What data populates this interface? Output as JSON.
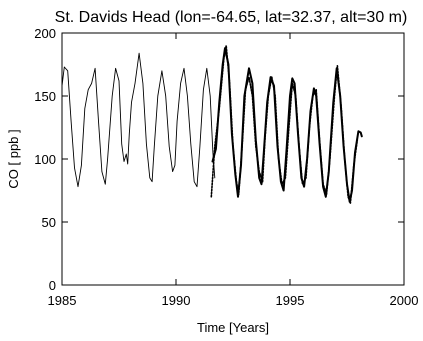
{
  "chart_data": {
    "type": "line",
    "title": "St. Davids Head (lon=-64.65, lat=32.37, alt=30 m)",
    "xlabel": "Time [Years]",
    "ylabel": "CO [ ppb ]",
    "xlim": [
      1985,
      2000
    ],
    "ylim": [
      0,
      200
    ],
    "grid": false,
    "x_ticks": [
      {
        "value": 1985,
        "label": "1985"
      },
      {
        "value": 1990,
        "label": "1990"
      },
      {
        "value": 1995,
        "label": "1995"
      },
      {
        "value": 2000,
        "label": "2000"
      }
    ],
    "y_ticks": [
      {
        "value": 0,
        "label": "0"
      },
      {
        "value": 50,
        "label": "50"
      },
      {
        "value": 100,
        "label": "100"
      },
      {
        "value": 150,
        "label": "150"
      },
      {
        "value": 200,
        "label": "200"
      }
    ],
    "series": [
      {
        "style": "solid-thin",
        "color": "#000000",
        "points": [
          [
            1985.0,
            158
          ],
          [
            1985.1,
            173
          ],
          [
            1985.25,
            170
          ],
          [
            1985.4,
            130
          ],
          [
            1985.55,
            93
          ],
          [
            1985.7,
            78
          ],
          [
            1985.85,
            95
          ],
          [
            1986.0,
            140
          ],
          [
            1986.15,
            155
          ],
          [
            1986.3,
            160
          ],
          [
            1986.45,
            172
          ],
          [
            1986.6,
            130
          ],
          [
            1986.75,
            90
          ],
          [
            1986.9,
            80
          ],
          [
            1987.0,
            100
          ],
          [
            1987.2,
            150
          ],
          [
            1987.35,
            172
          ],
          [
            1987.5,
            162
          ],
          [
            1987.62,
            112
          ],
          [
            1987.72,
            98
          ],
          [
            1987.82,
            104
          ],
          [
            1987.88,
            96
          ],
          [
            1987.95,
            120
          ],
          [
            1988.05,
            145
          ],
          [
            1988.2,
            160
          ],
          [
            1988.38,
            184
          ],
          [
            1988.55,
            160
          ],
          [
            1988.7,
            112
          ],
          [
            1988.85,
            85
          ],
          [
            1988.95,
            82
          ],
          [
            1989.05,
            110
          ],
          [
            1989.2,
            150
          ],
          [
            1989.38,
            170
          ],
          [
            1989.55,
            150
          ],
          [
            1989.7,
            110
          ],
          [
            1989.85,
            90
          ],
          [
            1989.95,
            95
          ],
          [
            1990.05,
            130
          ],
          [
            1990.2,
            160
          ],
          [
            1990.35,
            172
          ],
          [
            1990.5,
            150
          ],
          [
            1990.65,
            112
          ],
          [
            1990.8,
            82
          ],
          [
            1990.92,
            78
          ],
          [
            1991.05,
            110
          ],
          [
            1991.2,
            155
          ],
          [
            1991.35,
            172
          ],
          [
            1991.5,
            150
          ],
          [
            1991.62,
            105
          ],
          [
            1991.7,
            85
          ]
        ]
      },
      {
        "style": "solid-thick",
        "color": "#000000",
        "points": [
          [
            1991.6,
            98
          ],
          [
            1991.75,
            108
          ],
          [
            1991.9,
            145
          ],
          [
            1992.05,
            175
          ],
          [
            1992.15,
            188
          ],
          [
            1992.3,
            175
          ],
          [
            1992.45,
            120
          ],
          [
            1992.6,
            88
          ],
          [
            1992.72,
            70
          ],
          [
            1992.85,
            95
          ],
          [
            1993.0,
            150
          ],
          [
            1993.2,
            172
          ],
          [
            1993.35,
            160
          ],
          [
            1993.5,
            115
          ],
          [
            1993.65,
            85
          ],
          [
            1993.75,
            80
          ],
          [
            1993.85,
            105
          ],
          [
            1994.0,
            145
          ],
          [
            1994.15,
            165
          ],
          [
            1994.3,
            158
          ],
          [
            1994.45,
            110
          ],
          [
            1994.6,
            82
          ],
          [
            1994.72,
            75
          ],
          [
            1994.85,
            108
          ],
          [
            1995.0,
            150
          ],
          [
            1995.1,
            164
          ],
          [
            1995.2,
            160
          ],
          [
            1995.35,
            120
          ],
          [
            1995.5,
            85
          ],
          [
            1995.62,
            78
          ],
          [
            1995.75,
            100
          ],
          [
            1995.9,
            138
          ],
          [
            1996.05,
            156
          ],
          [
            1996.15,
            150
          ],
          [
            1996.3,
            112
          ],
          [
            1996.45,
            78
          ],
          [
            1996.57,
            70
          ],
          [
            1996.7,
            90
          ],
          [
            1996.9,
            145
          ],
          [
            1997.05,
            172
          ],
          [
            1997.2,
            150
          ],
          [
            1997.35,
            110
          ],
          [
            1997.5,
            80
          ],
          [
            1997.62,
            66
          ],
          [
            1997.72,
            75
          ],
          [
            1997.85,
            105
          ],
          [
            1998.0,
            122
          ],
          [
            1998.1,
            121
          ],
          [
            1998.15,
            118
          ]
        ]
      },
      {
        "style": "dotted",
        "color": "#000000",
        "points": [
          [
            1991.55,
            70
          ],
          [
            1991.7,
            110
          ],
          [
            1991.9,
            140
          ],
          [
            1992.1,
            180
          ],
          [
            1992.2,
            190
          ],
          [
            1992.35,
            160
          ],
          [
            1992.5,
            110
          ],
          [
            1992.65,
            82
          ],
          [
            1992.75,
            72
          ],
          [
            1992.9,
            110
          ],
          [
            1993.05,
            155
          ],
          [
            1993.2,
            165
          ],
          [
            1993.35,
            150
          ],
          [
            1993.5,
            110
          ],
          [
            1993.65,
            90
          ],
          [
            1993.8,
            82
          ],
          [
            1993.9,
            115
          ],
          [
            1994.05,
            150
          ],
          [
            1994.2,
            165
          ],
          [
            1994.35,
            150
          ],
          [
            1994.5,
            100
          ],
          [
            1994.65,
            80
          ],
          [
            1994.8,
            85
          ],
          [
            1994.95,
            125
          ],
          [
            1995.1,
            160
          ],
          [
            1995.25,
            150
          ],
          [
            1995.4,
            110
          ],
          [
            1995.55,
            80
          ],
          [
            1995.7,
            85
          ],
          [
            1995.85,
            125
          ],
          [
            1996.0,
            150
          ],
          [
            1996.15,
            155
          ],
          [
            1996.3,
            115
          ],
          [
            1996.45,
            80
          ],
          [
            1996.6,
            72
          ],
          [
            1996.75,
            100
          ],
          [
            1996.95,
            150
          ],
          [
            1997.08,
            174
          ],
          [
            1997.25,
            140
          ],
          [
            1997.4,
            100
          ],
          [
            1997.55,
            70
          ],
          [
            1997.65,
            65
          ],
          [
            1997.8,
            95
          ],
          [
            1997.95,
            115
          ]
        ]
      }
    ]
  }
}
